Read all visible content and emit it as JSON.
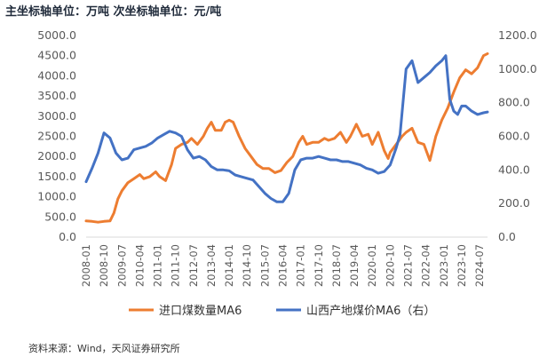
{
  "header": {
    "title": "主坐标轴单位：万吨 次坐标轴单位：元/吨"
  },
  "footer": {
    "source": "资料来源：Wind，天风证券研究所"
  },
  "colors": {
    "primary": "#ED7D31",
    "secondary": "#4472C4",
    "axis": "#D9D9D9",
    "text": "#595959"
  },
  "chart_data": {
    "type": "line",
    "title": "",
    "grid": false,
    "legend_position": "bottom",
    "x_tick_labels": [
      "2008-01",
      "2008-10",
      "2009-07",
      "2010-04",
      "2011-01",
      "2011-10",
      "2012-07",
      "2013-04",
      "2014-01",
      "2014-10",
      "2015-07",
      "2016-04",
      "2017-01",
      "2017-10",
      "2018-07",
      "2019-04",
      "2020-01",
      "2020-10",
      "2021-07",
      "2022-04",
      "2023-01",
      "2023-10",
      "2024-07"
    ],
    "y_left": {
      "min": 0,
      "max": 5000,
      "step": 500,
      "tick_labels": [
        "0.0",
        "500.0",
        "1000.0",
        "1500.0",
        "2000.0",
        "2500.0",
        "3000.0",
        "3500.0",
        "4000.0",
        "4500.0",
        "5000.0"
      ]
    },
    "y_right": {
      "min": 0,
      "max": 1200,
      "step": 200,
      "tick_labels": [
        "0.0",
        "200.0",
        "400.0",
        "600.0",
        "800.0",
        "1000.0",
        "1200.0"
      ]
    },
    "series": [
      {
        "name": "进口煤数量MA6",
        "axis": "left",
        "color": "#ED7D31",
        "points": [
          [
            "2008-01",
            400
          ],
          [
            "2008-04",
            390
          ],
          [
            "2008-07",
            370
          ],
          [
            "2008-10",
            390
          ],
          [
            "2009-01",
            400
          ],
          [
            "2009-03",
            600
          ],
          [
            "2009-05",
            950
          ],
          [
            "2009-07",
            1150
          ],
          [
            "2009-10",
            1350
          ],
          [
            "2010-01",
            1450
          ],
          [
            "2010-04",
            1550
          ],
          [
            "2010-06",
            1450
          ],
          [
            "2010-09",
            1500
          ],
          [
            "2010-12",
            1620
          ],
          [
            "2011-02",
            1500
          ],
          [
            "2011-05",
            1400
          ],
          [
            "2011-08",
            1800
          ],
          [
            "2011-10",
            2200
          ],
          [
            "2012-01",
            2300
          ],
          [
            "2012-04",
            2350
          ],
          [
            "2012-06",
            2450
          ],
          [
            "2012-09",
            2300
          ],
          [
            "2012-12",
            2500
          ],
          [
            "2013-02",
            2700
          ],
          [
            "2013-04",
            2850
          ],
          [
            "2013-06",
            2650
          ],
          [
            "2013-09",
            2650
          ],
          [
            "2013-11",
            2850
          ],
          [
            "2014-01",
            2900
          ],
          [
            "2014-03",
            2850
          ],
          [
            "2014-06",
            2500
          ],
          [
            "2014-09",
            2200
          ],
          [
            "2014-12",
            2000
          ],
          [
            "2015-03",
            1800
          ],
          [
            "2015-06",
            1700
          ],
          [
            "2015-09",
            1700
          ],
          [
            "2015-12",
            1600
          ],
          [
            "2016-03",
            1650
          ],
          [
            "2016-06",
            1850
          ],
          [
            "2016-09",
            2000
          ],
          [
            "2016-12",
            2350
          ],
          [
            "2017-02",
            2500
          ],
          [
            "2017-04",
            2300
          ],
          [
            "2017-07",
            2350
          ],
          [
            "2017-10",
            2350
          ],
          [
            "2018-01",
            2450
          ],
          [
            "2018-03",
            2400
          ],
          [
            "2018-06",
            2450
          ],
          [
            "2018-09",
            2600
          ],
          [
            "2018-12",
            2350
          ],
          [
            "2019-02",
            2500
          ],
          [
            "2019-05",
            2800
          ],
          [
            "2019-08",
            2500
          ],
          [
            "2019-11",
            2550
          ],
          [
            "2020-01",
            2300
          ],
          [
            "2020-04",
            2600
          ],
          [
            "2020-07",
            2150
          ],
          [
            "2020-09",
            1950
          ],
          [
            "2020-10",
            2100
          ],
          [
            "2021-01",
            2300
          ],
          [
            "2021-04",
            2500
          ],
          [
            "2021-06",
            2600
          ],
          [
            "2021-09",
            2700
          ],
          [
            "2021-12",
            2350
          ],
          [
            "2022-03",
            2300
          ],
          [
            "2022-06",
            1900
          ],
          [
            "2022-09",
            2500
          ],
          [
            "2022-12",
            2900
          ],
          [
            "2023-03",
            3200
          ],
          [
            "2023-06",
            3600
          ],
          [
            "2023-09",
            3950
          ],
          [
            "2023-12",
            4150
          ],
          [
            "2024-03",
            4050
          ],
          [
            "2024-06",
            4200
          ],
          [
            "2024-09",
            4500
          ],
          [
            "2024-11",
            4550
          ]
        ]
      },
      {
        "name": "山西产地煤价MA6（右）",
        "axis": "right",
        "color": "#4472C4",
        "points": [
          [
            "2008-01",
            330
          ],
          [
            "2008-04",
            410
          ],
          [
            "2008-07",
            500
          ],
          [
            "2008-10",
            620
          ],
          [
            "2009-01",
            590
          ],
          [
            "2009-04",
            500
          ],
          [
            "2009-07",
            460
          ],
          [
            "2009-10",
            470
          ],
          [
            "2010-01",
            520
          ],
          [
            "2010-04",
            530
          ],
          [
            "2010-07",
            540
          ],
          [
            "2010-10",
            560
          ],
          [
            "2011-01",
            590
          ],
          [
            "2011-04",
            610
          ],
          [
            "2011-07",
            630
          ],
          [
            "2011-10",
            620
          ],
          [
            "2012-01",
            600
          ],
          [
            "2012-04",
            520
          ],
          [
            "2012-07",
            470
          ],
          [
            "2012-10",
            480
          ],
          [
            "2013-01",
            460
          ],
          [
            "2013-04",
            420
          ],
          [
            "2013-07",
            400
          ],
          [
            "2013-10",
            400
          ],
          [
            "2014-01",
            395
          ],
          [
            "2014-04",
            370
          ],
          [
            "2014-07",
            360
          ],
          [
            "2014-10",
            350
          ],
          [
            "2015-01",
            340
          ],
          [
            "2015-04",
            300
          ],
          [
            "2015-07",
            260
          ],
          [
            "2015-10",
            230
          ],
          [
            "2016-01",
            210
          ],
          [
            "2016-04",
            210
          ],
          [
            "2016-07",
            260
          ],
          [
            "2016-10",
            400
          ],
          [
            "2017-01",
            460
          ],
          [
            "2017-04",
            470
          ],
          [
            "2017-07",
            470
          ],
          [
            "2017-10",
            480
          ],
          [
            "2018-01",
            470
          ],
          [
            "2018-04",
            460
          ],
          [
            "2018-07",
            460
          ],
          [
            "2018-10",
            450
          ],
          [
            "2019-01",
            450
          ],
          [
            "2019-04",
            440
          ],
          [
            "2019-07",
            430
          ],
          [
            "2019-10",
            410
          ],
          [
            "2020-01",
            400
          ],
          [
            "2020-04",
            380
          ],
          [
            "2020-07",
            390
          ],
          [
            "2020-10",
            430
          ],
          [
            "2021-01",
            530
          ],
          [
            "2021-03",
            610
          ],
          [
            "2021-06",
            1000
          ],
          [
            "2021-09",
            1050
          ],
          [
            "2021-12",
            920
          ],
          [
            "2022-03",
            950
          ],
          [
            "2022-06",
            980
          ],
          [
            "2022-09",
            1020
          ],
          [
            "2022-12",
            1050
          ],
          [
            "2023-02",
            1080
          ],
          [
            "2023-04",
            820
          ],
          [
            "2023-06",
            750
          ],
          [
            "2023-08",
            730
          ],
          [
            "2023-10",
            780
          ],
          [
            "2023-12",
            780
          ],
          [
            "2024-03",
            750
          ],
          [
            "2024-06",
            730
          ],
          [
            "2024-09",
            740
          ],
          [
            "2024-11",
            745
          ]
        ]
      }
    ]
  }
}
